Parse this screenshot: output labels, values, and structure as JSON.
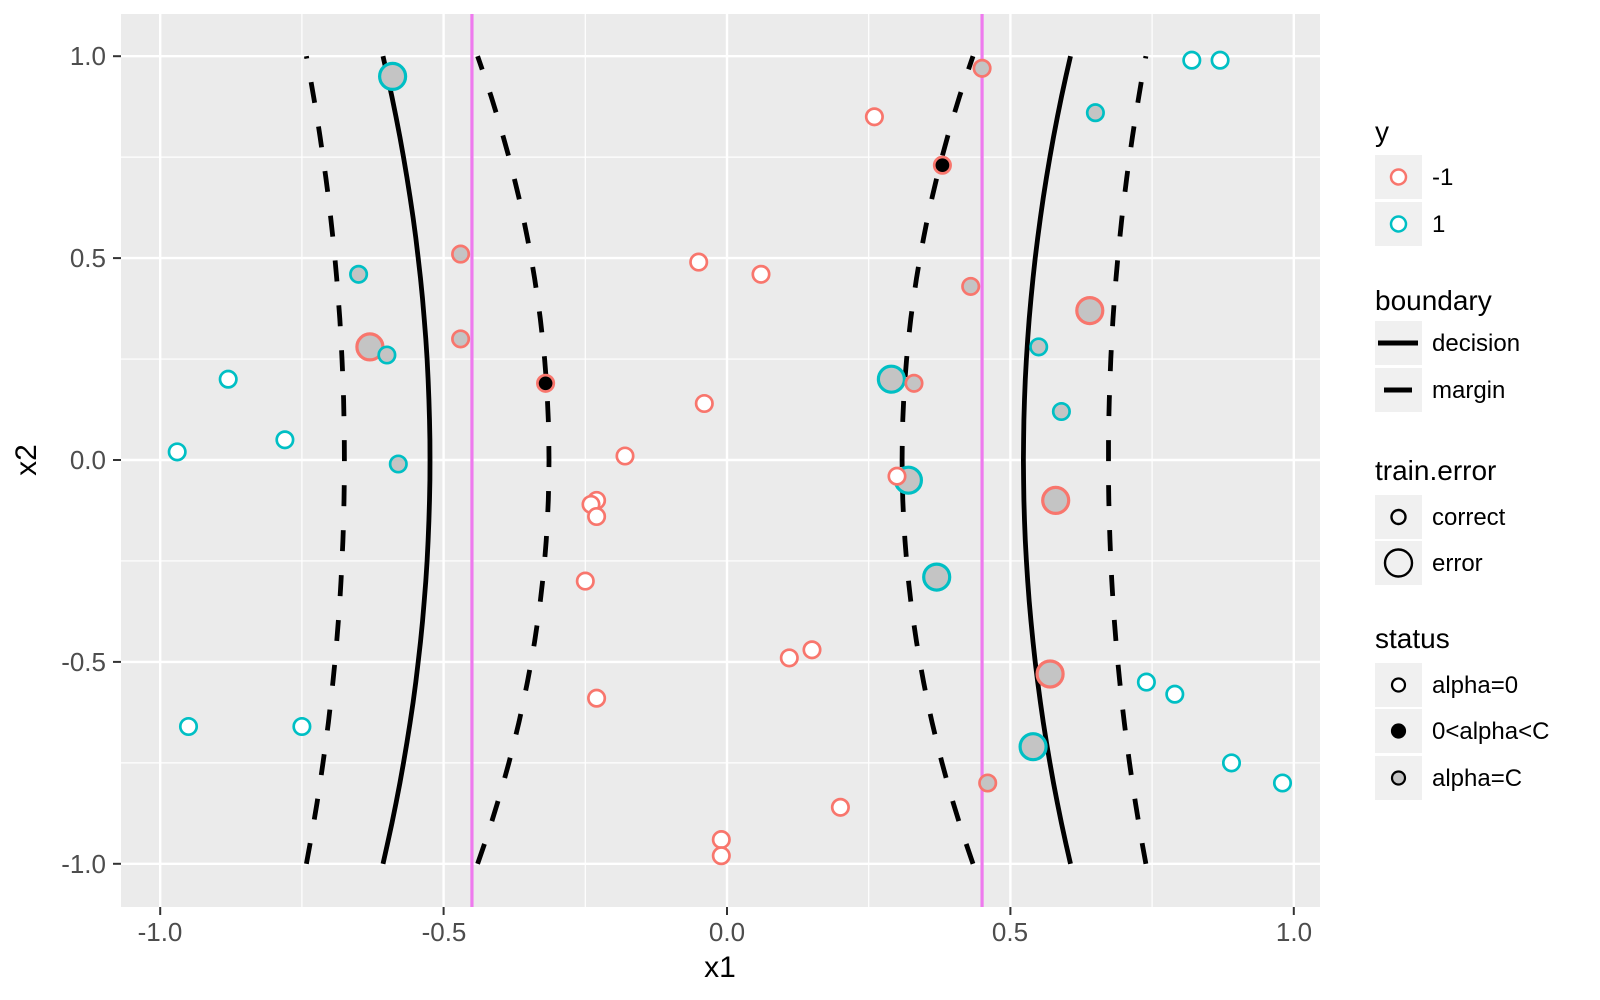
{
  "figure": {
    "xlabel": "x1",
    "ylabel": "x2",
    "x_ticks": [
      "-1.0",
      "-0.5",
      "0.0",
      "0.5",
      "1.0"
    ],
    "y_ticks": [
      "1.0",
      "0.5",
      "0.0",
      "-0.5",
      "-1.0"
    ]
  },
  "legend": {
    "y": {
      "title": "y",
      "items": [
        {
          "label": "-1",
          "color": "#F8766D"
        },
        {
          "label": "1",
          "color": "#00BFC4"
        }
      ]
    },
    "boundary": {
      "title": "boundary",
      "items": [
        {
          "label": "decision",
          "style": "solid"
        },
        {
          "label": "margin",
          "style": "dashed"
        }
      ]
    },
    "train_error": {
      "title": "train.error",
      "items": [
        {
          "label": "correct",
          "size": "small"
        },
        {
          "label": "error",
          "size": "large"
        }
      ]
    },
    "status": {
      "title": "status",
      "items": [
        {
          "label": "alpha=0",
          "fill": "white"
        },
        {
          "label": "0<alpha<C",
          "fill": "black"
        },
        {
          "label": "alpha=C",
          "fill": "gray"
        }
      ]
    }
  },
  "chart_data": {
    "type": "scatter",
    "title": "",
    "xlabel": "x1",
    "ylabel": "x2",
    "xlim": [
      -1.07,
      1.05
    ],
    "ylim": [
      -1.11,
      1.1
    ],
    "x_tick_values": [
      -1,
      -0.5,
      0,
      0.5,
      1
    ],
    "y_tick_values": [
      1,
      0.5,
      0,
      -0.5,
      -1
    ],
    "grid": "on",
    "legend_position": "right",
    "colors": {
      "class_neg": "#F8766D",
      "class_pos": "#00BFC4",
      "fill_gray": "#C4C4C4",
      "fill_black": "#000000",
      "fill_open": "#FFFFFF",
      "panel": "#EBEBEB",
      "gridline": "#FFFFFF",
      "vline": "#EE7AEE",
      "curve": "#000000"
    },
    "vlines": [
      -0.45,
      0.45
    ],
    "curves": [
      {
        "boundary": "margin",
        "a": -0.675,
        "b": -0.067
      },
      {
        "boundary": "decision",
        "a": -0.524,
        "b": -0.083
      },
      {
        "boundary": "margin",
        "a": -0.314,
        "b": -0.126
      },
      {
        "boundary": "margin",
        "a": 0.309,
        "b": 0.125
      },
      {
        "boundary": "decision",
        "a": 0.523,
        "b": 0.083
      },
      {
        "boundary": "margin",
        "a": 0.673,
        "b": 0.066
      }
    ],
    "points": [
      {
        "x1": -0.59,
        "x2": 0.95,
        "y": 1,
        "train_error": "error",
        "status": "alpha=C"
      },
      {
        "x1": -0.47,
        "x2": 0.51,
        "y": -1,
        "train_error": "correct",
        "status": "alpha=C"
      },
      {
        "x1": -0.65,
        "x2": 0.46,
        "y": 1,
        "train_error": "correct",
        "status": "alpha=C"
      },
      {
        "x1": -0.63,
        "x2": 0.28,
        "y": -1,
        "train_error": "error",
        "status": "alpha=C"
      },
      {
        "x1": -0.6,
        "x2": 0.26,
        "y": 1,
        "train_error": "correct",
        "status": "alpha=C"
      },
      {
        "x1": -0.47,
        "x2": 0.3,
        "y": -1,
        "train_error": "correct",
        "status": "alpha=C"
      },
      {
        "x1": -0.88,
        "x2": 0.2,
        "y": 1,
        "train_error": "correct",
        "status": "alpha=0"
      },
      {
        "x1": -0.78,
        "x2": 0.05,
        "y": 1,
        "train_error": "correct",
        "status": "alpha=0"
      },
      {
        "x1": -0.97,
        "x2": 0.02,
        "y": 1,
        "train_error": "correct",
        "status": "alpha=0"
      },
      {
        "x1": 0.26,
        "x2": 0.85,
        "y": -1,
        "train_error": "correct",
        "status": "alpha=0"
      },
      {
        "x1": -0.05,
        "x2": 0.49,
        "y": -1,
        "train_error": "correct",
        "status": "alpha=0"
      },
      {
        "x1": 0.06,
        "x2": 0.46,
        "y": -1,
        "train_error": "correct",
        "status": "alpha=0"
      },
      {
        "x1": -0.32,
        "x2": 0.19,
        "y": -1,
        "train_error": "correct",
        "status": "0<alpha<C"
      },
      {
        "x1": -0.04,
        "x2": 0.14,
        "y": -1,
        "train_error": "correct",
        "status": "alpha=0"
      },
      {
        "x1": 0.29,
        "x2": 0.2,
        "y": 1,
        "train_error": "error",
        "status": "alpha=C"
      },
      {
        "x1": 0.33,
        "x2": 0.19,
        "y": -1,
        "train_error": "correct",
        "status": "alpha=C"
      },
      {
        "x1": 0.45,
        "x2": 0.97,
        "y": -1,
        "train_error": "correct",
        "status": "alpha=C"
      },
      {
        "x1": 0.82,
        "x2": 0.99,
        "y": 1,
        "train_error": "correct",
        "status": "alpha=0"
      },
      {
        "x1": 0.87,
        "x2": 0.99,
        "y": 1,
        "train_error": "correct",
        "status": "alpha=0"
      },
      {
        "x1": 0.65,
        "x2": 0.86,
        "y": 1,
        "train_error": "correct",
        "status": "alpha=C"
      },
      {
        "x1": 0.38,
        "x2": 0.73,
        "y": -1,
        "train_error": "correct",
        "status": "0<alpha<C"
      },
      {
        "x1": 0.43,
        "x2": 0.43,
        "y": -1,
        "train_error": "correct",
        "status": "alpha=C"
      },
      {
        "x1": 0.64,
        "x2": 0.37,
        "y": -1,
        "train_error": "error",
        "status": "alpha=C"
      },
      {
        "x1": 0.55,
        "x2": 0.28,
        "y": 1,
        "train_error": "correct",
        "status": "alpha=C"
      },
      {
        "x1": 0.59,
        "x2": 0.12,
        "y": 1,
        "train_error": "correct",
        "status": "alpha=C"
      },
      {
        "x1": -0.58,
        "x2": -0.01,
        "y": 1,
        "train_error": "correct",
        "status": "alpha=C"
      },
      {
        "x1": -0.95,
        "x2": -0.66,
        "y": 1,
        "train_error": "correct",
        "status": "alpha=0"
      },
      {
        "x1": -0.75,
        "x2": -0.66,
        "y": 1,
        "train_error": "correct",
        "status": "alpha=0"
      },
      {
        "x1": -0.18,
        "x2": 0.01,
        "y": -1,
        "train_error": "correct",
        "status": "alpha=0"
      },
      {
        "x1": -0.23,
        "x2": -0.1,
        "y": -1,
        "train_error": "correct",
        "status": "alpha=0"
      },
      {
        "x1": -0.24,
        "x2": -0.11,
        "y": -1,
        "train_error": "correct",
        "status": "alpha=0"
      },
      {
        "x1": -0.23,
        "x2": -0.14,
        "y": -1,
        "train_error": "correct",
        "status": "alpha=0"
      },
      {
        "x1": -0.25,
        "x2": -0.3,
        "y": -1,
        "train_error": "correct",
        "status": "alpha=0"
      },
      {
        "x1": 0.3,
        "x2": -0.04,
        "y": -1,
        "train_error": "correct",
        "status": "alpha=0"
      },
      {
        "x1": 0.32,
        "x2": -0.05,
        "y": 1,
        "train_error": "error",
        "status": "alpha=C"
      },
      {
        "x1": 0.11,
        "x2": -0.49,
        "y": -1,
        "train_error": "correct",
        "status": "alpha=0"
      },
      {
        "x1": 0.15,
        "x2": -0.47,
        "y": -1,
        "train_error": "correct",
        "status": "alpha=0"
      },
      {
        "x1": -0.23,
        "x2": -0.59,
        "y": -1,
        "train_error": "correct",
        "status": "alpha=0"
      },
      {
        "x1": 0.2,
        "x2": -0.86,
        "y": -1,
        "train_error": "correct",
        "status": "alpha=0"
      },
      {
        "x1": -0.01,
        "x2": -0.94,
        "y": -1,
        "train_error": "correct",
        "status": "alpha=0"
      },
      {
        "x1": -0.01,
        "x2": -0.98,
        "y": -1,
        "train_error": "correct",
        "status": "alpha=0"
      },
      {
        "x1": 0.58,
        "x2": -0.1,
        "y": -1,
        "train_error": "error",
        "status": "alpha=C"
      },
      {
        "x1": 0.37,
        "x2": -0.29,
        "y": 1,
        "train_error": "error",
        "status": "alpha=C"
      },
      {
        "x1": 0.57,
        "x2": -0.53,
        "y": -1,
        "train_error": "error",
        "status": "alpha=C"
      },
      {
        "x1": 0.54,
        "x2": -0.71,
        "y": 1,
        "train_error": "error",
        "status": "alpha=C"
      },
      {
        "x1": 0.46,
        "x2": -0.8,
        "y": -1,
        "train_error": "correct",
        "status": "alpha=C"
      },
      {
        "x1": 0.74,
        "x2": -0.55,
        "y": 1,
        "train_error": "correct",
        "status": "alpha=0"
      },
      {
        "x1": 0.79,
        "x2": -0.58,
        "y": 1,
        "train_error": "correct",
        "status": "alpha=0"
      },
      {
        "x1": 0.89,
        "x2": -0.75,
        "y": 1,
        "train_error": "correct",
        "status": "alpha=0"
      },
      {
        "x1": 0.98,
        "x2": -0.8,
        "y": 1,
        "train_error": "correct",
        "status": "alpha=0"
      }
    ]
  }
}
